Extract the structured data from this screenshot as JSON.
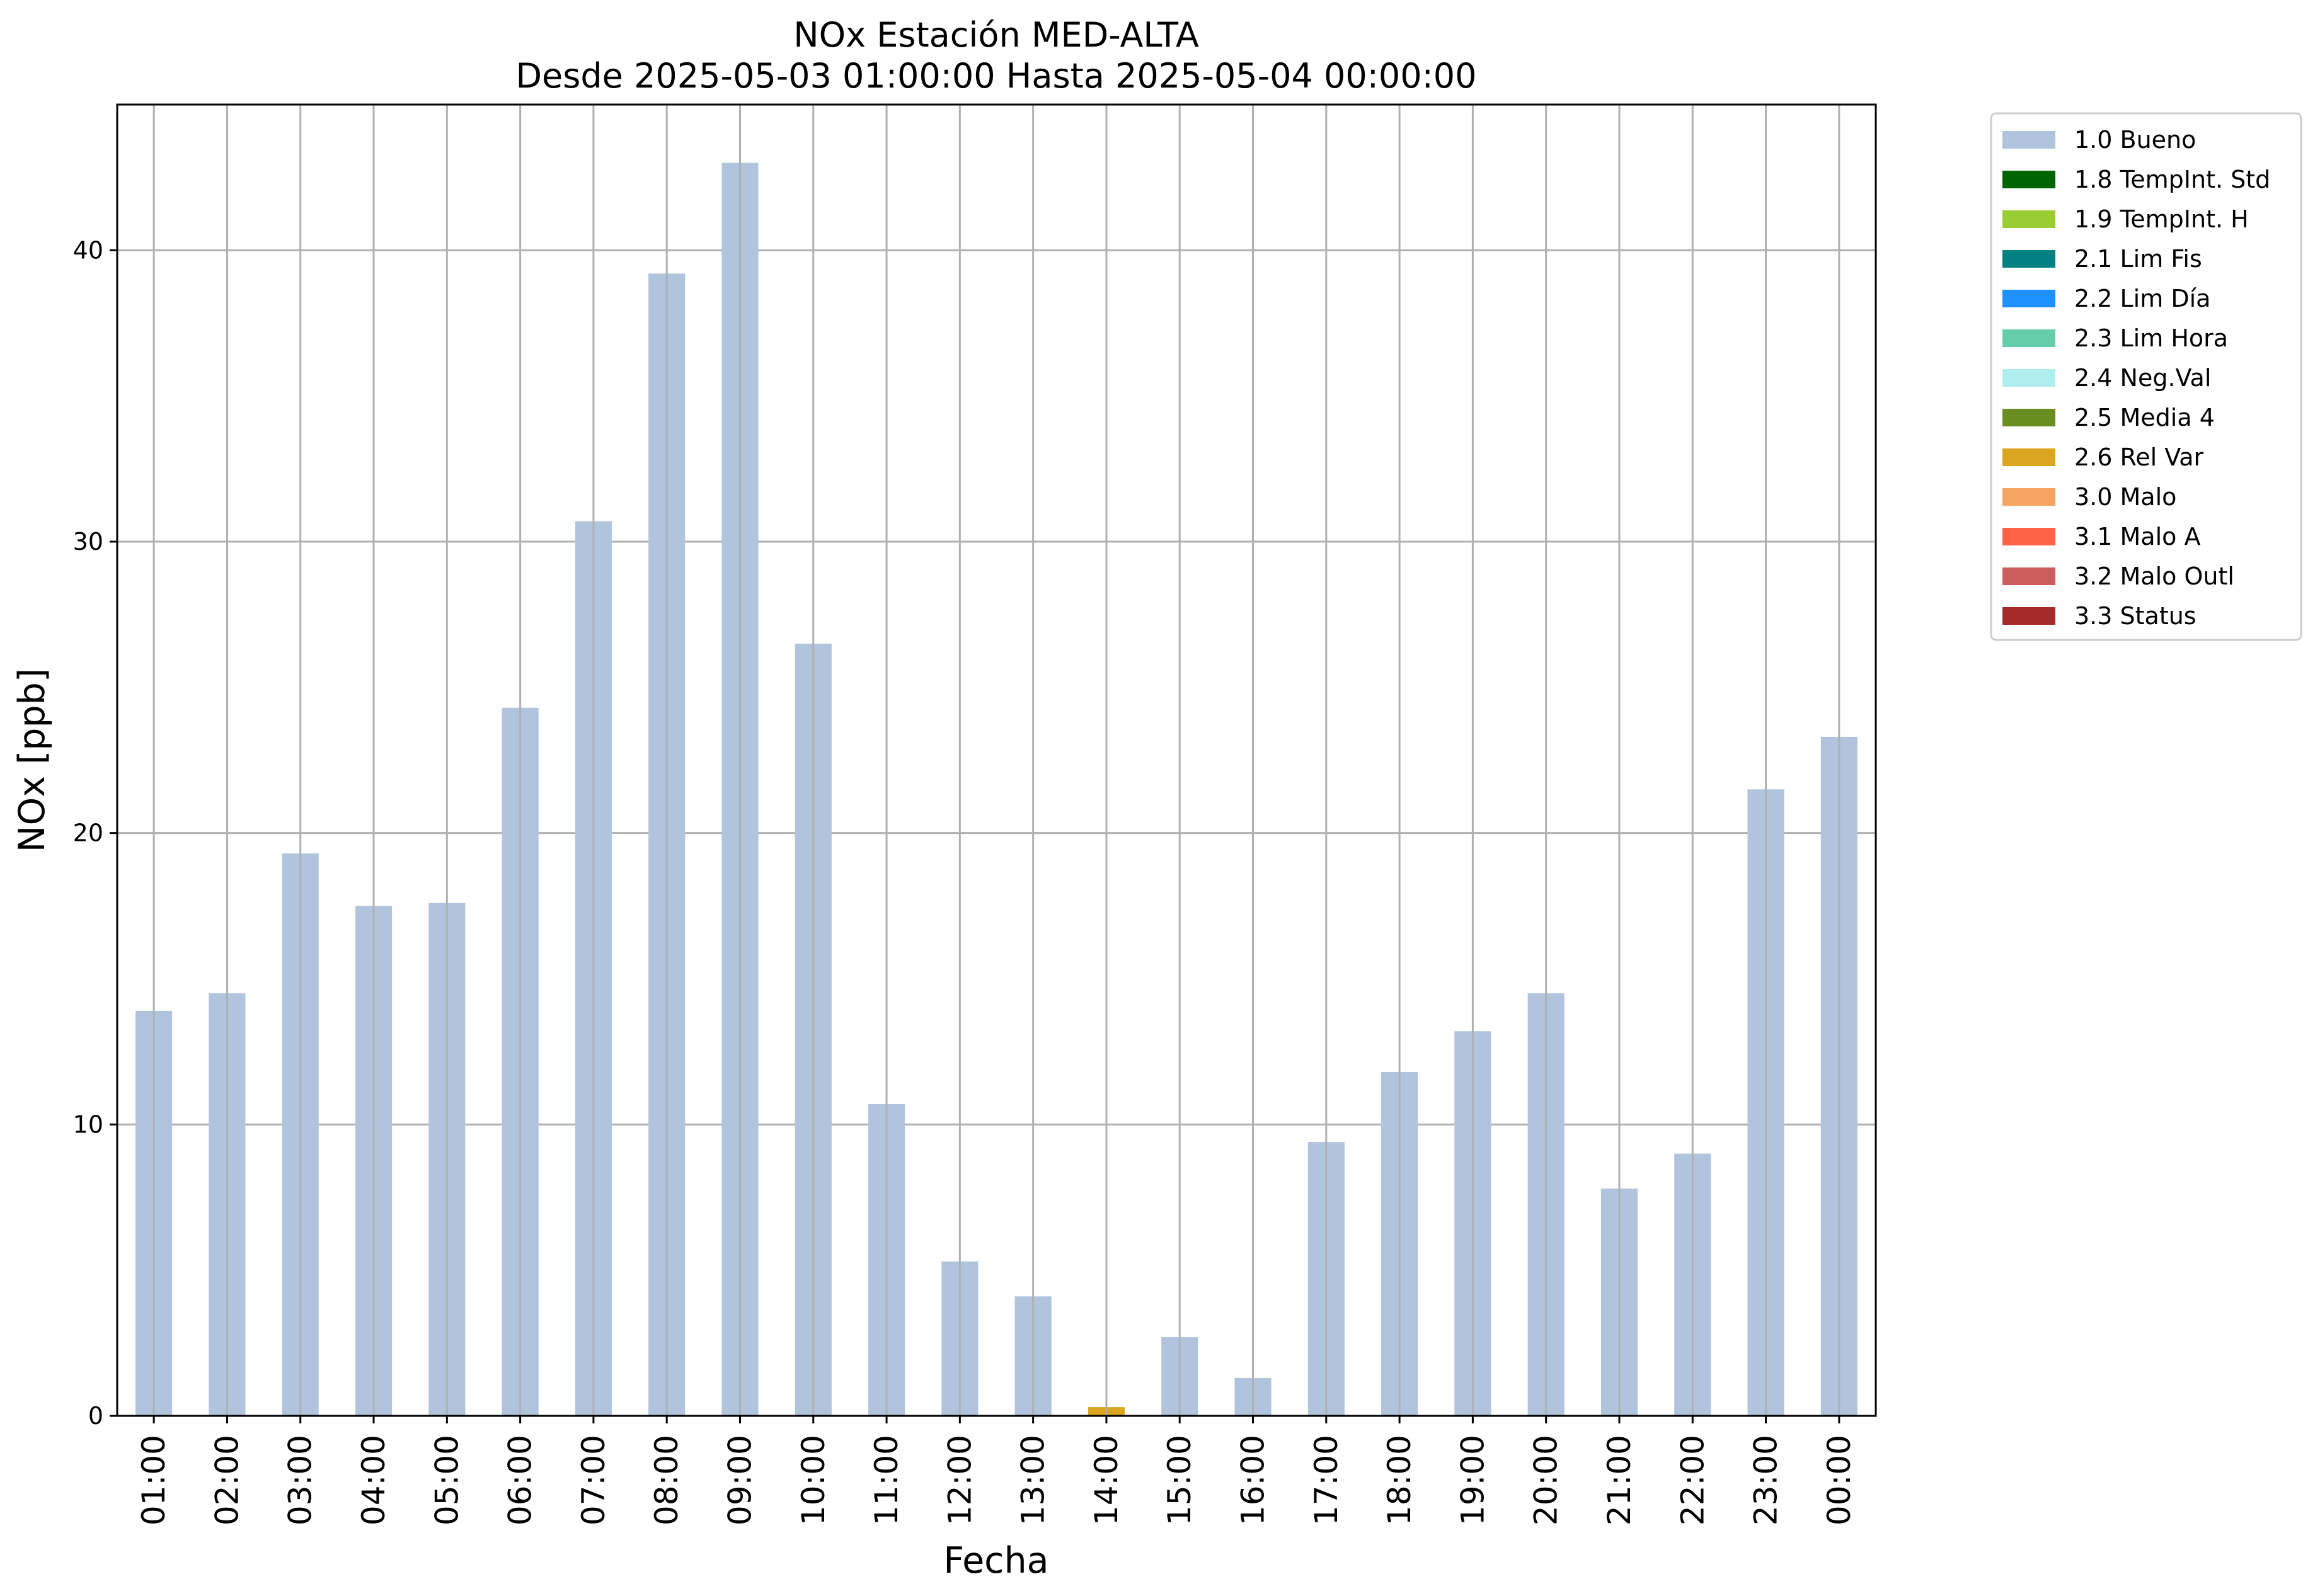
{
  "chart_data": {
    "type": "bar",
    "title": "NOx Estación MED-ALTA",
    "subtitle": "Desde 2025-05-03 01:00:00 Hasta 2025-05-04 00:00:00",
    "xlabel": "Fecha",
    "ylabel": "NOx [ppb]",
    "ylim": [
      0,
      45
    ],
    "yticks": [
      0,
      10,
      20,
      30,
      40
    ],
    "grid": true,
    "legend_position": "outside-top-right",
    "categories": [
      "01:00",
      "02:00",
      "03:00",
      "04:00",
      "05:00",
      "06:00",
      "07:00",
      "08:00",
      "09:00",
      "10:00",
      "11:00",
      "12:00",
      "13:00",
      "14:00",
      "15:00",
      "16:00",
      "17:00",
      "18:00",
      "19:00",
      "20:00",
      "21:00",
      "22:00",
      "23:00",
      "00:00"
    ],
    "values": [
      13.9,
      14.5,
      19.3,
      17.5,
      17.6,
      24.3,
      30.7,
      39.2,
      43.0,
      26.5,
      10.7,
      5.3,
      4.1,
      0.3,
      2.7,
      1.3,
      9.4,
      11.8,
      13.2,
      14.5,
      7.8,
      9.0,
      21.5,
      23.3
    ],
    "flags": [
      "1.0 Bueno",
      "1.0 Bueno",
      "1.0 Bueno",
      "1.0 Bueno",
      "1.0 Bueno",
      "1.0 Bueno",
      "1.0 Bueno",
      "1.0 Bueno",
      "1.0 Bueno",
      "1.0 Bueno",
      "1.0 Bueno",
      "1.0 Bueno",
      "1.0 Bueno",
      "2.6 Rel Var",
      "1.0 Bueno",
      "1.0 Bueno",
      "1.0 Bueno",
      "1.0 Bueno",
      "1.0 Bueno",
      "1.0 Bueno",
      "1.0 Bueno",
      "1.0 Bueno",
      "1.0 Bueno",
      "1.0 Bueno"
    ],
    "legend": [
      {
        "label": "1.0 Bueno",
        "color": "#b0c4de"
      },
      {
        "label": "1.8 TempInt. Std",
        "color": "#006400"
      },
      {
        "label": "1.9 TempInt. H",
        "color": "#9acd32"
      },
      {
        "label": "2.1 Lim Fis",
        "color": "#008080"
      },
      {
        "label": "2.2 Lim Día",
        "color": "#1e90ff"
      },
      {
        "label": "2.3 Lim Hora",
        "color": "#66cdaa"
      },
      {
        "label": "2.4 Neg.Val",
        "color": "#afeeee"
      },
      {
        "label": "2.5 Media 4",
        "color": "#6b8e23"
      },
      {
        "label": "2.6 Rel Var",
        "color": "#daa520"
      },
      {
        "label": "3.0 Malo",
        "color": "#f4a460"
      },
      {
        "label": "3.1 Malo A",
        "color": "#ff6347"
      },
      {
        "label": "3.2 Malo Outl",
        "color": "#cd5c5c"
      },
      {
        "label": "3.3 Status",
        "color": "#a52a2a"
      }
    ]
  }
}
